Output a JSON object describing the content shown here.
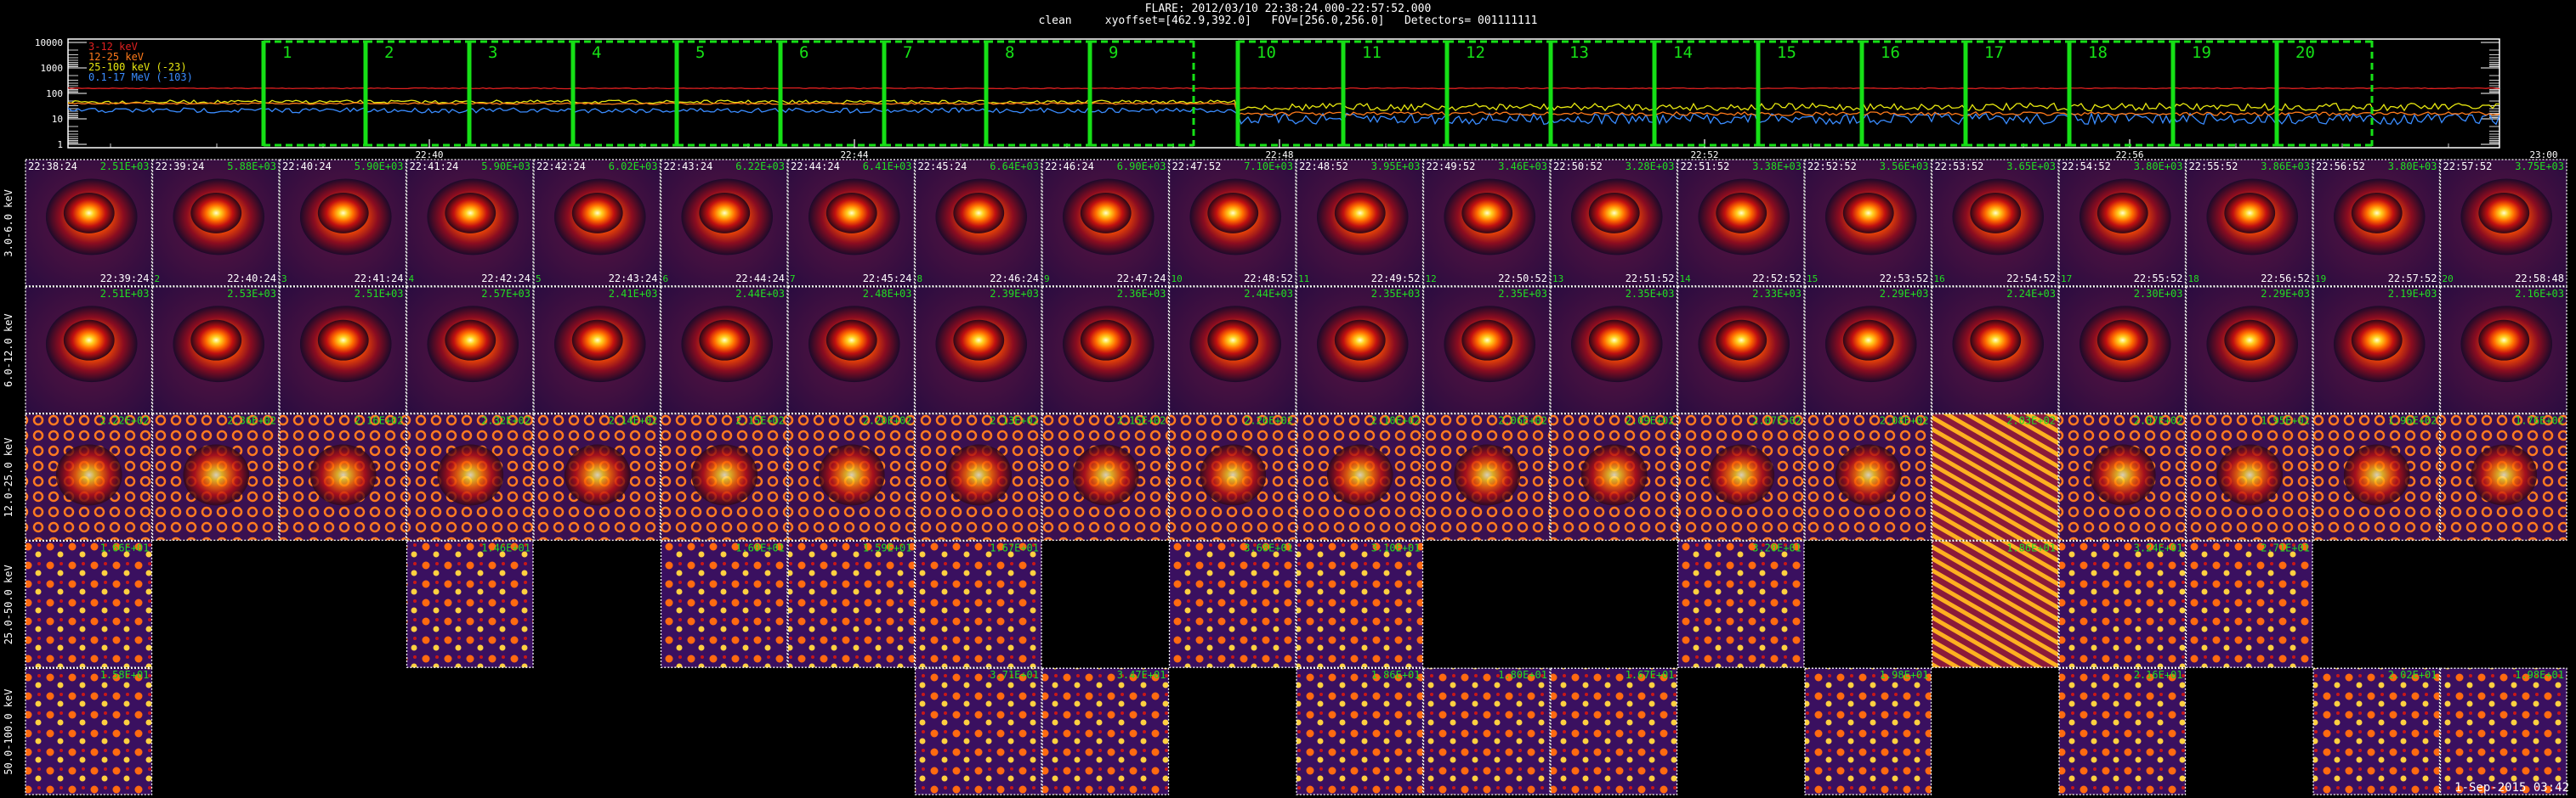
{
  "header": {
    "title": "FLARE: 2012/03/10 22:38:24.000-22:57:52.000",
    "subtitle": "clean     xyoffset=[462.9,392.0]   FOV=[256.0,256.0]   Detectors= 001111111"
  },
  "lightcurve": {
    "y_ticks": [
      "10000",
      "1000",
      "100",
      "10",
      "1"
    ],
    "x_ticks": [
      "22:40",
      "22:44",
      "22:48",
      "22:52",
      "22:56",
      "23:00"
    ],
    "legend": [
      {
        "text": "3-12 keV",
        "color": "#e02020"
      },
      {
        "text": "12-25 keV",
        "color": "#ff7a1a"
      },
      {
        "text": "25-100 keV (-23)",
        "color": "#e8e810"
      },
      {
        "text": "0.1-17 MeV (-103)",
        "color": "#3a8cff"
      }
    ],
    "intervals": [
      "1",
      "2",
      "3",
      "4",
      "5",
      "6",
      "7",
      "8",
      "9",
      "10",
      "11",
      "12",
      "13",
      "14",
      "15",
      "16",
      "17",
      "18",
      "19",
      "20"
    ],
    "interval_color": "#16e016"
  },
  "energy_bands": [
    "3.0-6.0 keV",
    "6.0-12.0 keV",
    "12.0-25.0 keV",
    "25.0-50.0 keV",
    "50.0-100.0 keV"
  ],
  "start_times": [
    "22:38:24",
    "22:39:24",
    "22:40:24",
    "22:41:24",
    "22:42:24",
    "22:43:24",
    "22:44:24",
    "22:45:24",
    "22:46:24",
    "22:47:52",
    "22:48:52",
    "22:49:52",
    "22:50:52",
    "22:51:52",
    "22:52:52",
    "22:53:52",
    "22:54:52",
    "22:55:52",
    "22:56:52",
    "22:57:52"
  ],
  "end_times": [
    "22:39:24",
    "22:40:24",
    "22:41:24",
    "22:42:24",
    "22:43:24",
    "22:44:24",
    "22:45:24",
    "22:46:24",
    "22:47:24",
    "22:48:52",
    "22:49:52",
    "22:50:52",
    "22:51:52",
    "22:52:52",
    "22:53:52",
    "22:54:52",
    "22:55:52",
    "22:56:52",
    "22:57:52",
    "22:58:48"
  ],
  "rows": [
    {
      "peaks": [
        "2.51E+03",
        "5.88E+03",
        "5.90E+03",
        "5.90E+03",
        "6.02E+03",
        "6.22E+03",
        "6.41E+03",
        "6.64E+03",
        "6.90E+03",
        "7.10E+03",
        "3.95E+03",
        "3.46E+03",
        "3.28E+03",
        "3.38E+03",
        "3.56E+03",
        "3.65E+03",
        "3.80E+03",
        "3.86E+03",
        "3.80E+03",
        "3.75E+03"
      ],
      "present": [
        1,
        1,
        1,
        1,
        1,
        1,
        1,
        1,
        1,
        1,
        1,
        1,
        1,
        1,
        1,
        1,
        1,
        1,
        1,
        1
      ]
    },
    {
      "peaks": [
        "2.51E+03",
        "2.53E+03",
        "2.51E+03",
        "2.57E+03",
        "2.41E+03",
        "2.44E+03",
        "2.48E+03",
        "2.39E+03",
        "2.36E+03",
        "2.44E+03",
        "2.35E+03",
        "2.35E+03",
        "2.35E+03",
        "2.33E+03",
        "2.29E+03",
        "2.24E+03",
        "2.30E+03",
        "2.29E+03",
        "2.19E+03",
        "2.16E+03"
      ],
      "present": [
        1,
        1,
        1,
        1,
        1,
        1,
        1,
        1,
        1,
        1,
        1,
        1,
        1,
        1,
        1,
        1,
        1,
        1,
        1,
        1
      ]
    },
    {
      "peaks": [
        "2.22E+02",
        "2.36E+02",
        "2.16E+02",
        "2.32E+02",
        "2.14E+02",
        "2.15E+02",
        "2.20E+02",
        "2.13E+02",
        "2.15E+02",
        "2.26E+02",
        "2.10E+02",
        "2.06E+02",
        "2.09E+02",
        "2.07E+02",
        "2.08E+02",
        "2.03E+02",
        "2.07E+02",
        "1.95E+02",
        "1.96E+02",
        "1.76E+02"
      ],
      "present": [
        1,
        1,
        1,
        1,
        1,
        1,
        1,
        1,
        1,
        1,
        1,
        1,
        1,
        1,
        1,
        1,
        1,
        1,
        1,
        1
      ]
    },
    {
      "peaks": [
        "1.66E+01",
        "",
        "",
        "1.46E+01",
        "",
        "1.60E+01",
        "1.59E+01",
        "1.67E+01",
        "",
        "3.68E+01",
        "3.10E+01",
        "",
        "",
        "3.20E+01",
        "",
        "1.86E+01",
        "3.24E+01",
        "2.71E+01",
        "",
        ""
      ],
      "present": [
        1,
        0,
        0,
        1,
        0,
        1,
        1,
        1,
        0,
        1,
        1,
        0,
        0,
        1,
        0,
        1,
        1,
        1,
        0,
        0
      ]
    },
    {
      "peaks": [
        "1.58E+01",
        "",
        "",
        "",
        "",
        "",
        "",
        "3.71E+01",
        "3.47E+01",
        "",
        "1.86E+01",
        "1.80E+01",
        "1.67E+01",
        "",
        "1.98E+01",
        "",
        "2.16E+01",
        "",
        "2.02E+01",
        "1.98E+01"
      ],
      "present": [
        1,
        0,
        0,
        0,
        0,
        0,
        0,
        1,
        1,
        0,
        1,
        1,
        1,
        0,
        1,
        0,
        1,
        0,
        1,
        1
      ]
    }
  ],
  "colors": {
    "peak_text": "#22dd22",
    "grid_dash": "#ffffff"
  },
  "footer": "1-Sep-2015 03:42"
}
